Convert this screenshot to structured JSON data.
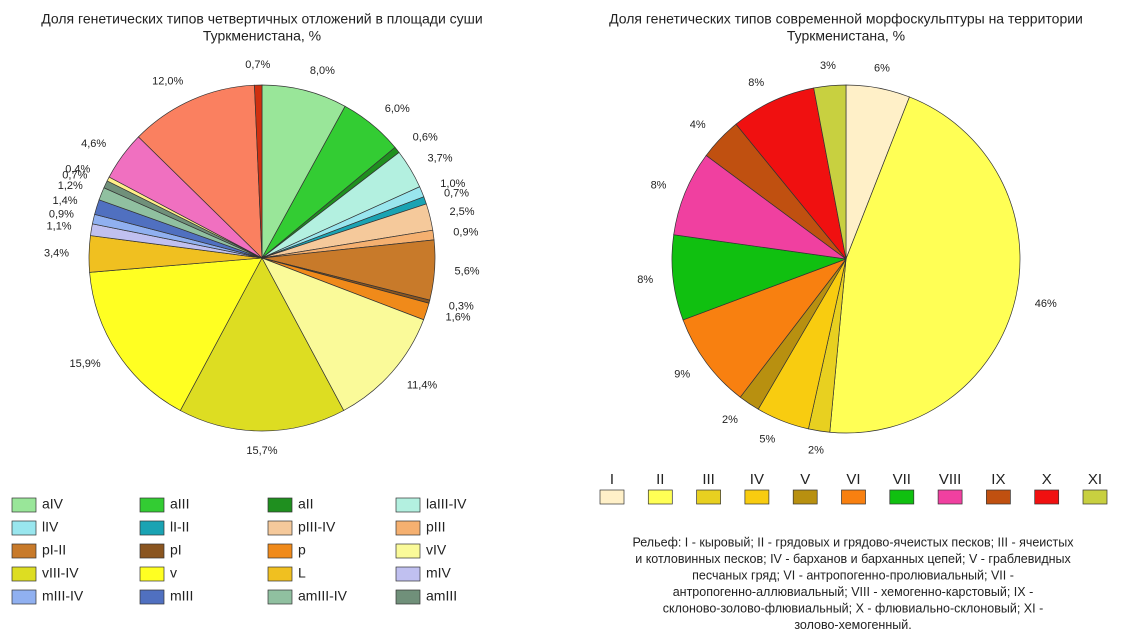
{
  "chart_data": [
    {
      "type": "pie",
      "title": [
        "Доля генетических типов четвертичных отложений в площади суши",
        "Туркменистана, %"
      ],
      "categories": [
        "aIV",
        "aIII",
        "aII",
        "laIII-IV",
        "lIV",
        "lI-II",
        "pIII-IV",
        "pIII",
        "pI-II",
        "pI",
        "p",
        "vIV",
        "vIII-IV",
        "v",
        "L",
        "mIV",
        "mIII-IV",
        "mIII",
        "amIII-IV",
        "amIII",
        null,
        null,
        null,
        null
      ],
      "values": [
        8.0,
        6.0,
        0.6,
        3.7,
        1.0,
        0.7,
        2.5,
        0.9,
        5.6,
        0.3,
        1.6,
        11.4,
        15.7,
        15.9,
        3.4,
        1.1,
        0.9,
        1.4,
        1.2,
        0.7,
        0.4,
        4.6,
        12.0,
        0.7
      ],
      "value_labels": [
        "8,0%",
        "6,0%",
        "0,6%",
        "3,7%",
        "1,0%",
        "0,7%",
        "2,5%",
        "0,9%",
        "5,6%",
        "0,3%",
        "1,6%",
        "11,4%",
        "15,7%",
        "15,9%",
        "3,4%",
        "1,1%",
        "0,9%",
        "1,4%",
        "1,2%",
        "0,7%",
        "0,4%",
        "4,6%",
        "12,0%",
        "0,7%"
      ],
      "colors": [
        "#99e699",
        "#33cc33",
        "#1f8f1f",
        "#b3f0e0",
        "#99e6ee",
        "#1aa3b3",
        "#f5c99b",
        "#f5b070",
        "#c87a2a",
        "#8a5520",
        "#f08a1a",
        "#fafa99",
        "#dddd22",
        "#ffff22",
        "#f0c020",
        "#c0c0f0",
        "#90b0f0",
        "#5070c0",
        "#90c0a0",
        "#70907a",
        "#ffee88",
        "#f070c0",
        "#fa8060",
        "#d03010"
      ]
    },
    {
      "type": "pie",
      "title": [
        "Доля генетических типов современной морфоскульптуры на территории",
        "Туркменистана, %"
      ],
      "categories": [
        "I",
        "II",
        "III",
        "IV",
        "V",
        "VI",
        "VII",
        "VIII",
        "IX",
        "X",
        "XI"
      ],
      "values": [
        6,
        46,
        2,
        5,
        2,
        9,
        8,
        8,
        4,
        8,
        3
      ],
      "value_labels": [
        "6%",
        "46%",
        "2%",
        "5%",
        "2%",
        "9%",
        "8%",
        "8%",
        "4%",
        "8%",
        "3%"
      ],
      "colors": [
        "#fff0c8",
        "#ffff55",
        "#e8d020",
        "#f8cc10",
        "#b89010",
        "#f88010",
        "#10c010",
        "#f040a0",
        "#c05010",
        "#f01010",
        "#c8d040"
      ],
      "note": [
        "Рельеф: I - кыровый; II - грядовых и грядово-ячеистых песков; III - ячеистых",
        "и котловинных песков; IV - барханов и барханных цепей; V - граблевидных",
        "песчаных гряд; VI - антропогенно-пролювиальный; VII -",
        "антропогенно-аллювиальный; VIII - хемогенно-карстовый; IX -",
        "склоново-золово-флювиальный; X - флювиально-склоновый; XI -",
        "золово-хемогенный."
      ]
    }
  ]
}
